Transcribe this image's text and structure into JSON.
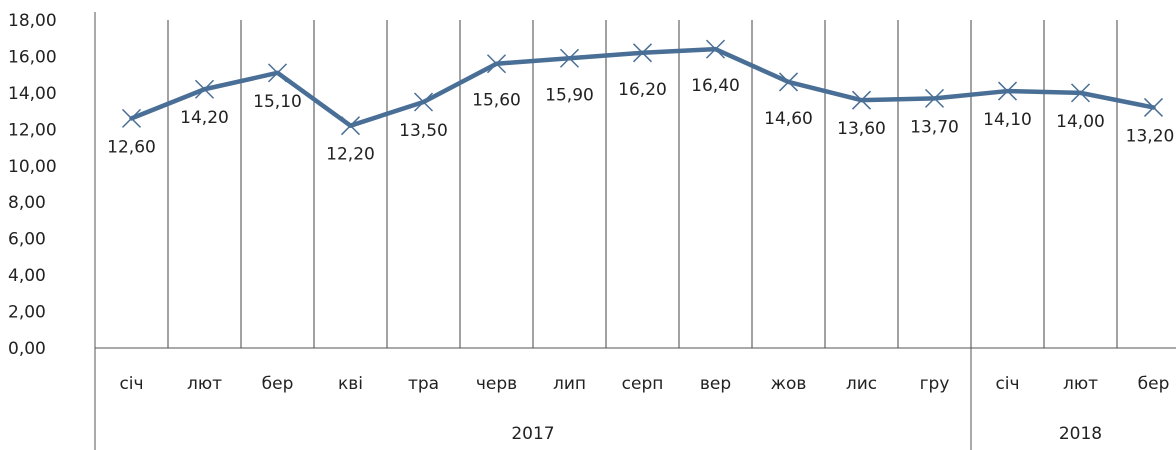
{
  "chart_data": {
    "type": "line",
    "title": "",
    "xlabel": "",
    "ylabel": "",
    "ylim": [
      0,
      18
    ],
    "y_ticks": [
      "0,00",
      "2,00",
      "4,00",
      "6,00",
      "8,00",
      "10,00",
      "12,00",
      "14,00",
      "16,00",
      "18,00"
    ],
    "grid": "vertical",
    "legend": "none",
    "categories": [
      "січ",
      "лют",
      "бер",
      "кві",
      "тра",
      "черв",
      "лип",
      "серп",
      "вер",
      "жов",
      "лис",
      "гру",
      "січ",
      "лют",
      "бер"
    ],
    "groups": [
      {
        "label": "2017",
        "count": 12
      },
      {
        "label": "2018",
        "count": 3
      }
    ],
    "series": [
      {
        "values": [
          12.6,
          14.2,
          15.1,
          12.2,
          13.5,
          15.6,
          15.9,
          16.2,
          16.4,
          14.6,
          13.6,
          13.7,
          14.1,
          14.0,
          13.2
        ],
        "labels": [
          "12,60",
          "14,20",
          "15,10",
          "12,20",
          "13,50",
          "15,60",
          "15,90",
          "16,20",
          "16,40",
          "14,60",
          "13,60",
          "13,70",
          "14,10",
          "14,00",
          "13,20"
        ],
        "color": "#4a6f96",
        "marker": "x"
      }
    ]
  }
}
